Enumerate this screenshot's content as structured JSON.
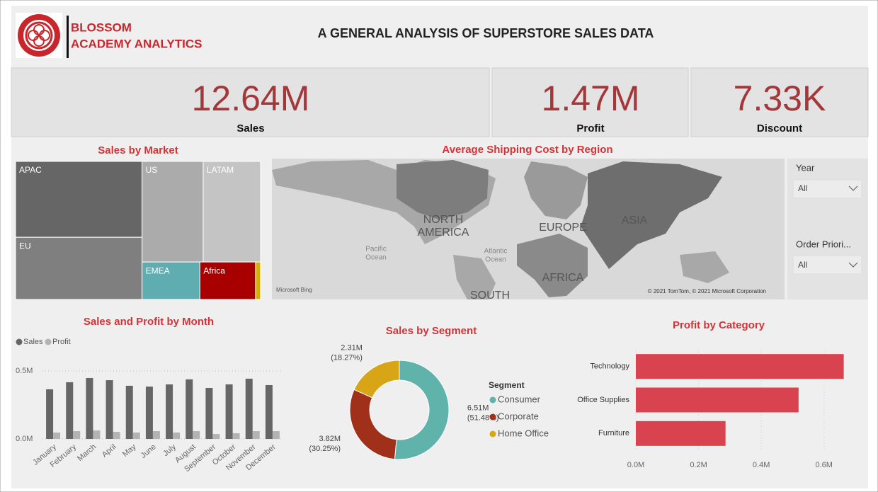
{
  "header": {
    "brand_line1": "BLOSSOM",
    "brand_line2": "ACADEMY ANALYTICS",
    "title": "A GENERAL ANALYSIS OF SUPERSTORE SALES DATA"
  },
  "kpis": [
    {
      "value": "12.64M",
      "label": "Sales"
    },
    {
      "value": "1.47M",
      "label": "Profit"
    },
    {
      "value": "7.33K",
      "label": "Discount"
    }
  ],
  "map": {
    "title": "Average Shipping Cost by Region",
    "labels": [
      "NORTH",
      "AMERICA",
      "Pacific",
      "Ocean",
      "Atlantic",
      "Ocean",
      "EUROPE",
      "ASIA",
      "AFRICA",
      "SOUTH"
    ],
    "logo": "Microsoft Bing",
    "attribution": "© 2021 TomTom, © 2021 Microsoft Corporation"
  },
  "slicers": [
    {
      "label": "Year",
      "value": "All"
    },
    {
      "label": "Order Priori...",
      "value": "All"
    }
  ],
  "chart_data": [
    {
      "type": "treemap",
      "title": "Sales by Market",
      "categories": [
        "APAC",
        "EU",
        "US",
        "LATAM",
        "EMEA",
        "Africa",
        null
      ],
      "values": [
        3.59,
        2.94,
        2.3,
        2.16,
        0.81,
        0.78,
        0.07
      ],
      "colors": [
        "#666666",
        "#7f7f7f",
        "#ababab",
        "#c4c4c4",
        "#5fadb0",
        "#a80000",
        "#d4b000"
      ]
    },
    {
      "type": "bar",
      "title": "Sales and Profit by Month",
      "categories": [
        "January",
        "February",
        "March",
        "April",
        "May",
        "June",
        "July",
        "August",
        "September",
        "October",
        "November",
        "December"
      ],
      "series": [
        {
          "name": "Sales",
          "color": "#666666",
          "values": [
            0.365,
            0.417,
            0.448,
            0.432,
            0.391,
            0.385,
            0.401,
            0.438,
            0.375,
            0.401,
            0.443,
            0.396
          ]
        },
        {
          "name": "Profit",
          "color": "#b3b3b3",
          "values": [
            0.047,
            0.057,
            0.062,
            0.052,
            0.047,
            0.057,
            0.047,
            0.057,
            0.036,
            0.042,
            0.057,
            0.057
          ]
        }
      ],
      "ylim": [
        0,
        0.5
      ],
      "yticks": [
        {
          "value": 0,
          "label": "0.0M"
        },
        {
          "value": 0.5,
          "label": "0.5M"
        }
      ],
      "grid": true
    },
    {
      "type": "donut",
      "title": "Sales by Segment",
      "legend_title": "Segment",
      "categories": [
        "Consumer",
        "Corporate",
        "Home Office"
      ],
      "values": [
        6.51,
        3.82,
        2.31
      ],
      "value_labels": [
        "6.51M",
        "3.82M",
        "2.31M"
      ],
      "percents": [
        51.48,
        30.25,
        18.27
      ],
      "percent_labels": [
        "(51.48%)",
        "(30.25%)",
        "(18.27%)"
      ],
      "colors": [
        "#5fb3ab",
        "#a0301a",
        "#d7a516"
      ]
    },
    {
      "type": "hbar",
      "title": "Profit by Category",
      "categories": [
        "Technology",
        "Office Supplies",
        "Furniture"
      ],
      "values": [
        0.663,
        0.519,
        0.286
      ],
      "color": "#d9434f",
      "xlim": [
        0,
        0.7
      ],
      "xticks": [
        {
          "value": 0,
          "label": "0.0M"
        },
        {
          "value": 0.2,
          "label": "0.2M"
        },
        {
          "value": 0.4,
          "label": "0.4M"
        },
        {
          "value": 0.6,
          "label": "0.6M"
        }
      ]
    }
  ]
}
